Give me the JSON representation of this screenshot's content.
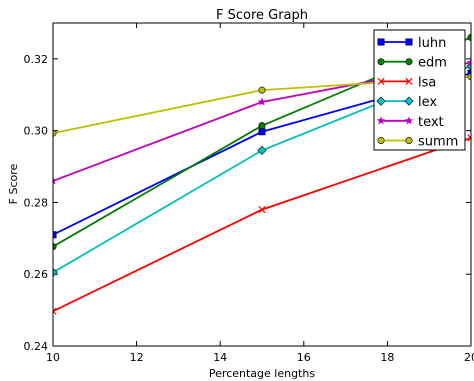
{
  "chart_data": {
    "type": "line",
    "title": "F Score Graph",
    "xlabel": "Percentage lengths",
    "ylabel": "F Score",
    "xlim": [
      10,
      20
    ],
    "ylim": [
      0.24,
      0.33
    ],
    "xticks": [
      10,
      12,
      14,
      16,
      18,
      20
    ],
    "yticks": [
      0.24,
      0.26,
      0.28,
      0.3,
      0.32
    ],
    "x": [
      10,
      15,
      20
    ],
    "legend_position": "top-right",
    "grid": false,
    "series": [
      {
        "name": "luhn",
        "values": [
          0.271,
          0.2997,
          0.316
        ],
        "color": "#0000ff",
        "marker": "square"
      },
      {
        "name": "edm",
        "values": [
          0.2677,
          0.3014,
          0.326
        ],
        "color": "#007f00",
        "marker": "circle"
      },
      {
        "name": "lsa",
        "values": [
          0.2497,
          0.278,
          0.298
        ],
        "color": "#ff0000",
        "marker": "x"
      },
      {
        "name": "lex",
        "values": [
          0.2605,
          0.2945,
          0.318
        ],
        "color": "#00bfbf",
        "marker": "diamond"
      },
      {
        "name": "text",
        "values": [
          0.286,
          0.308,
          0.319
        ],
        "color": "#bf00bf",
        "marker": "star"
      },
      {
        "name": "summ",
        "values": [
          0.2993,
          0.3113,
          0.315
        ],
        "color": "#bfbf00",
        "marker": "circle"
      }
    ]
  }
}
